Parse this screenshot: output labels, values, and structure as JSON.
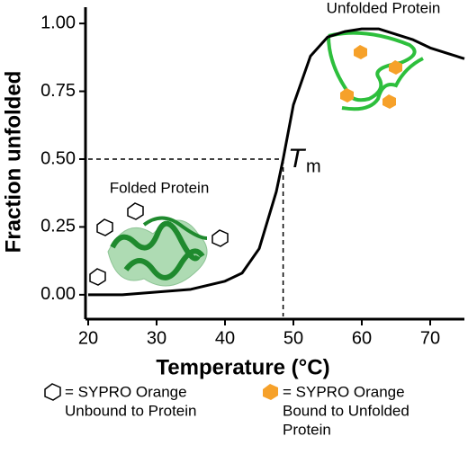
{
  "chart_data": {
    "type": "line",
    "x_label": "Temperature (°C)",
    "y_label": "Fraction unfolded",
    "x": [
      20,
      25,
      30,
      35,
      40,
      42.5,
      45,
      47.5,
      48.5,
      50,
      52.5,
      55,
      57.5,
      60,
      62.5,
      65,
      67.5,
      70,
      72.5,
      75
    ],
    "series": [
      {
        "name": "Fraction unfolded",
        "color": "#000000",
        "values": [
          0.0,
          0.0,
          0.01,
          0.02,
          0.05,
          0.08,
          0.17,
          0.38,
          0.5,
          0.7,
          0.88,
          0.95,
          0.97,
          0.98,
          0.98,
          0.96,
          0.94,
          0.91,
          0.89,
          0.87
        ]
      }
    ],
    "xlim": [
      20,
      75
    ],
    "xticks": [
      20,
      30,
      40,
      50,
      60,
      70
    ],
    "ylim": [
      -0.08,
      1.06
    ],
    "yticks": [
      {
        "value": 0,
        "label": "0.00"
      },
      {
        "value": 0.25,
        "label": "0.25"
      },
      {
        "value": 0.5,
        "label": "0.50"
      },
      {
        "value": 0.75,
        "label": "0.75"
      },
      {
        "value": 1,
        "label": "1.00"
      }
    ],
    "tm": 48.5,
    "tm_fraction": 0.5,
    "tm_label": "T",
    "tm_label_sub": "m",
    "unfolded_label": "Unfolded Protein",
    "folded_label": "Folded Protein",
    "legend": [
      {
        "symbol": "hollow hexagon",
        "lines": [
          "= SYPRO Orange",
          "Unbound to Protein"
        ]
      },
      {
        "symbol": "orange hexagon",
        "lines": [
          "= SYPRO Orange",
          "Bound to Unfolded",
          "Protein"
        ]
      }
    ]
  }
}
